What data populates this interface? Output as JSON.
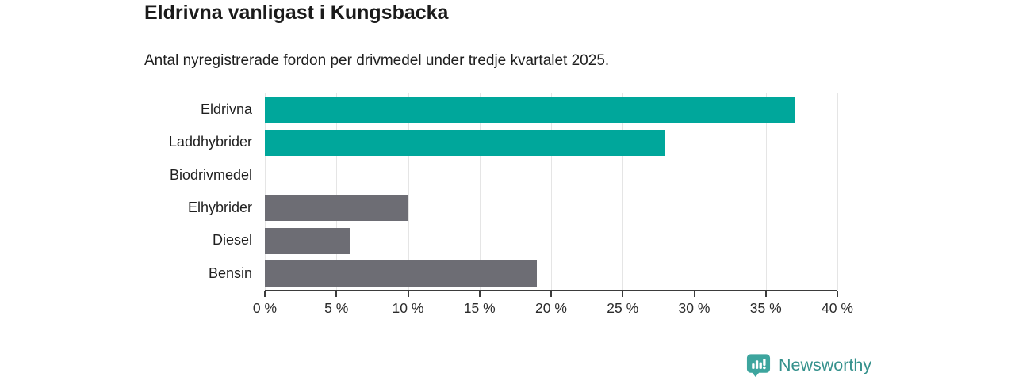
{
  "header": {
    "title": "Eldrivna vanligast i Kungsbacka",
    "subtitle": "Antal nyregistrerade fordon per drivmedel under tredje kvartalet 2025."
  },
  "chart_data": {
    "type": "bar",
    "orientation": "horizontal",
    "title": "Eldrivna vanligast i Kungsbacka",
    "subtitle": "Antal nyregistrerade fordon per drivmedel under tredje kvartalet 2025.",
    "categories": [
      "Eldrivna",
      "Laddhybrider",
      "Biodrivmedel",
      "Elhybrider",
      "Diesel",
      "Bensin"
    ],
    "values": [
      37,
      28,
      0,
      10,
      6,
      19
    ],
    "unit": "%",
    "bar_colors": [
      "#00a79b",
      "#00a79b",
      "#6d6d74",
      "#6d6d74",
      "#6d6d74",
      "#6d6d74"
    ],
    "highlight_color": "#00a79b",
    "default_color": "#6d6d74",
    "xlim": [
      0,
      40
    ],
    "xticks": [
      0,
      5,
      10,
      15,
      20,
      25,
      30,
      35,
      40
    ],
    "xtick_labels": [
      "0 %",
      "5 %",
      "10 %",
      "15 %",
      "20 %",
      "25 %",
      "30 %",
      "35 %",
      "40 %"
    ],
    "grid": true,
    "grid_color": "#e5e5e5",
    "legend": "none"
  },
  "footer": {
    "brand": "Newsworthy",
    "brand_color": "#35918c",
    "icon": "bar-chart-speech-bubble-icon",
    "icon_color": "#3da59e"
  }
}
